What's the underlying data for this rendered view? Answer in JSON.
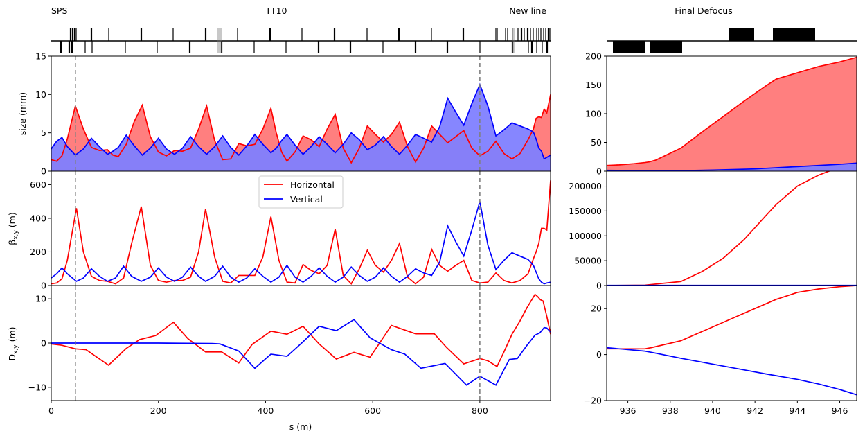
{
  "header": {
    "sps": "SPS",
    "tt10": "TT10",
    "new_line": "New line",
    "final_defocus": "Final Defocus"
  },
  "legend": {
    "horizontal": "Horizontal",
    "vertical": "Vertical"
  },
  "colors": {
    "horizontal": "#ff0000",
    "vertical": "#0000ff",
    "h_fill": "#ff7f7f",
    "v_fill": "#7f7fff",
    "v_line_style": "#808080"
  },
  "chart_data": [
    {
      "type": "area",
      "panel": "left-size",
      "xlabel": "",
      "ylabel": "size (mm)",
      "xlim": [
        0,
        932
      ],
      "ylim": [
        0,
        15
      ],
      "xticks": [],
      "yticks": [
        0,
        5,
        10,
        15
      ],
      "vlines": [
        45,
        800
      ],
      "series": [
        {
          "name": "Horizontal",
          "x": [
            0,
            10,
            20,
            30,
            45,
            60,
            75,
            90,
            105,
            115,
            125,
            140,
            155,
            170,
            185,
            200,
            215,
            230,
            245,
            260,
            275,
            290,
            305,
            320,
            335,
            350,
            365,
            380,
            395,
            410,
            420,
            430,
            440,
            455,
            470,
            485,
            500,
            515,
            530,
            545,
            560,
            575,
            590,
            605,
            620,
            635,
            650,
            665,
            680,
            695,
            710,
            725,
            740,
            755,
            770,
            785,
            800,
            815,
            830,
            845,
            860,
            875,
            890,
            900,
            905,
            910,
            915,
            920,
            925,
            932
          ],
          "values": [
            1.5,
            1.3,
            2,
            4.2,
            8.5,
            5.5,
            3.1,
            2.7,
            2.8,
            2.1,
            1.9,
            3.5,
            6.5,
            8.6,
            4.5,
            2.5,
            2,
            2.7,
            2.6,
            3,
            5.5,
            8.5,
            4,
            1.5,
            1.6,
            3.6,
            3.3,
            3.5,
            5.5,
            8.2,
            5,
            2.5,
            1.3,
            2.5,
            4.6,
            4.1,
            3.2,
            5.5,
            7.4,
            3,
            1.1,
            3,
            5.9,
            4.8,
            3.8,
            4.8,
            6.4,
            3.2,
            1.2,
            3,
            5.9,
            4.8,
            3.7,
            4.5,
            5.3,
            3,
            2,
            2.6,
            3.9,
            2.3,
            1.6,
            2.3,
            4.1,
            5.5,
            6.9,
            7.1,
            7,
            8.1,
            7.6,
            10
          ]
        },
        {
          "name": "Vertical",
          "x": [
            0,
            10,
            20,
            30,
            45,
            60,
            75,
            90,
            105,
            115,
            125,
            140,
            155,
            170,
            185,
            200,
            215,
            230,
            245,
            260,
            275,
            290,
            305,
            320,
            335,
            350,
            365,
            380,
            395,
            410,
            420,
            430,
            440,
            455,
            470,
            485,
            500,
            515,
            530,
            545,
            560,
            575,
            590,
            605,
            620,
            635,
            650,
            665,
            680,
            695,
            710,
            725,
            740,
            755,
            770,
            785,
            800,
            815,
            830,
            845,
            860,
            875,
            890,
            900,
            905,
            910,
            915,
            920,
            925,
            932
          ],
          "values": [
            2.9,
            3.9,
            4.4,
            3.2,
            2.1,
            2.9,
            4.3,
            3.2,
            2.2,
            2.6,
            3.1,
            4.7,
            3.3,
            2.1,
            3,
            4.3,
            2.9,
            2.2,
            3,
            4.5,
            3.2,
            2.2,
            3.2,
            4.6,
            3.1,
            2.1,
            3.3,
            4.8,
            3.5,
            2.4,
            3,
            4,
            4.8,
            3.4,
            2.2,
            3.2,
            4.5,
            3.5,
            2.4,
            3.5,
            5,
            4.1,
            2.8,
            3.4,
            4.5,
            3.2,
            2.2,
            3.4,
            4.8,
            4.3,
            3.8,
            5.8,
            9.5,
            7.7,
            6,
            8.8,
            11.3,
            8.5,
            4.6,
            5.4,
            6.3,
            5.9,
            5.5,
            5.1,
            4.2,
            3,
            2.6,
            1.6,
            1.8,
            2.1
          ]
        }
      ]
    },
    {
      "type": "line",
      "panel": "left-beta",
      "xlabel": "",
      "ylabel": "β_x,y (m)",
      "xlim": [
        0,
        932
      ],
      "ylim": [
        0,
        680
      ],
      "yticks": [
        0,
        200,
        400,
        600
      ],
      "vlines": [
        45,
        800
      ],
      "legend": "upper-center",
      "series": [
        {
          "name": "Horizontal",
          "x": [
            0,
            10,
            20,
            30,
            47,
            60,
            75,
            90,
            105,
            120,
            135,
            150,
            168,
            185,
            200,
            215,
            230,
            245,
            260,
            275,
            288,
            305,
            320,
            335,
            350,
            365,
            380,
            395,
            410,
            425,
            440,
            455,
            470,
            485,
            500,
            515,
            530,
            545,
            560,
            575,
            590,
            605,
            620,
            635,
            650,
            665,
            680,
            695,
            710,
            725,
            740,
            755,
            770,
            785,
            800,
            815,
            830,
            845,
            860,
            875,
            890,
            900,
            905,
            910,
            915,
            920,
            925,
            932
          ],
          "values": [
            10,
            15,
            40,
            150,
            460,
            200,
            55,
            30,
            25,
            10,
            45,
            250,
            470,
            120,
            30,
            20,
            30,
            30,
            50,
            200,
            455,
            170,
            25,
            15,
            60,
            60,
            60,
            170,
            410,
            150,
            20,
            15,
            125,
            90,
            70,
            120,
            335,
            60,
            10,
            100,
            210,
            120,
            80,
            150,
            250,
            50,
            10,
            50,
            215,
            120,
            85,
            120,
            150,
            30,
            15,
            20,
            75,
            30,
            15,
            30,
            70,
            160,
            200,
            250,
            340,
            340,
            330,
            625
          ]
        },
        {
          "name": "Vertical",
          "x": [
            0,
            10,
            20,
            30,
            47,
            60,
            75,
            90,
            105,
            120,
            135,
            150,
            168,
            185,
            200,
            215,
            230,
            245,
            260,
            275,
            288,
            305,
            320,
            335,
            350,
            365,
            380,
            395,
            410,
            425,
            440,
            455,
            470,
            485,
            500,
            515,
            530,
            545,
            560,
            575,
            590,
            605,
            620,
            635,
            650,
            665,
            680,
            695,
            710,
            725,
            740,
            755,
            770,
            785,
            800,
            815,
            830,
            845,
            860,
            875,
            890,
            900,
            905,
            910,
            915,
            920,
            925,
            932
          ],
          "values": [
            45,
            70,
            105,
            70,
            25,
            45,
            100,
            55,
            25,
            45,
            115,
            55,
            25,
            50,
            105,
            50,
            25,
            50,
            110,
            55,
            25,
            55,
            115,
            50,
            20,
            45,
            100,
            55,
            20,
            50,
            120,
            50,
            20,
            55,
            105,
            55,
            20,
            50,
            110,
            60,
            25,
            50,
            105,
            55,
            20,
            55,
            100,
            75,
            60,
            140,
            355,
            260,
            175,
            330,
            500,
            240,
            95,
            150,
            195,
            175,
            155,
            120,
            80,
            40,
            20,
            10,
            15,
            20
          ]
        }
      ]
    },
    {
      "type": "line",
      "panel": "left-dispersion",
      "xlabel": "s (m)",
      "ylabel": "D_x,y (m)",
      "xlim": [
        0,
        932
      ],
      "ylim": [
        -13,
        13
      ],
      "xticks": [
        0,
        200,
        400,
        600,
        800
      ],
      "yticks": [
        -10,
        0,
        10
      ],
      "vlines": [
        45,
        800
      ],
      "series": [
        {
          "name": "Horizontal",
          "x": [
            0,
            20,
            45,
            65,
            107,
            140,
            165,
            195,
            228,
            255,
            288,
            318,
            350,
            375,
            410,
            440,
            470,
            500,
            532,
            565,
            595,
            635,
            680,
            715,
            738,
            770,
            800,
            815,
            832,
            845,
            860,
            875,
            888,
            898,
            903,
            908,
            913,
            918,
            925,
            932
          ],
          "values": [
            -0.2,
            -0.5,
            -1.3,
            -1.5,
            -5,
            -1.2,
            0.8,
            1.7,
            4.7,
            1,
            -2,
            -2,
            -4.5,
            -0.3,
            2.7,
            2,
            3.8,
            -0.2,
            -3.6,
            -2.1,
            -3.2,
            4,
            2.1,
            2.1,
            -1,
            -4.7,
            -3.5,
            -4,
            -5.3,
            -2,
            2,
            5,
            8,
            10,
            11,
            10.5,
            9.8,
            9.5,
            6,
            2
          ]
        },
        {
          "name": "Vertical",
          "x": [
            0,
            100,
            200,
            300,
            315,
            350,
            380,
            410,
            440,
            470,
            500,
            532,
            565,
            595,
            635,
            660,
            690,
            735,
            775,
            800,
            830,
            855,
            870,
            888,
            903,
            912,
            920,
            925,
            932
          ],
          "values": [
            0,
            0,
            0,
            -0.1,
            -0.2,
            -1.8,
            -5.7,
            -2.5,
            -3,
            0.3,
            3.8,
            2.8,
            5.3,
            1.2,
            -1.5,
            -2.5,
            -5.7,
            -4.6,
            -9.5,
            -7.5,
            -9.5,
            -3.7,
            -3.5,
            -0.5,
            1.8,
            2.3,
            3.5,
            3.4,
            2.5
          ]
        }
      ]
    },
    {
      "type": "area",
      "panel": "right-size",
      "xlim": [
        935,
        946.8
      ],
      "ylim": [
        0,
        200
      ],
      "yticks": [
        0,
        50,
        100,
        150,
        200
      ],
      "series": [
        {
          "name": "Horizontal",
          "x": [
            935,
            935.6,
            936.3,
            936.8,
            937.0,
            937.3,
            938.5,
            939.5,
            940.5,
            941.5,
            942.5,
            943.0,
            943.9,
            945.0,
            946.0,
            946.8
          ],
          "values": [
            10,
            11,
            13,
            15,
            16,
            19,
            40,
            68,
            95,
            122,
            148,
            160,
            170,
            182,
            190,
            198
          ]
        },
        {
          "name": "Vertical",
          "x": [
            935,
            936.8,
            938.5,
            940.0,
            942.0,
            944.0,
            946.0,
            946.8
          ],
          "values": [
            1.5,
            1,
            1,
            2,
            4,
            8,
            12,
            14
          ]
        }
      ]
    },
    {
      "type": "line",
      "panel": "right-beta",
      "xlim": [
        935,
        946.8
      ],
      "ylim": [
        0,
        230000
      ],
      "yticks": [
        0,
        50000,
        100000,
        150000,
        200000
      ],
      "series": [
        {
          "name": "Horizontal",
          "x": [
            935,
            936.8,
            938.5,
            939.5,
            940.5,
            941.5,
            942.5,
            943.0,
            944.0,
            945.0,
            946.0,
            946.8
          ],
          "values": [
            0,
            800,
            8000,
            28000,
            55000,
            93000,
            140000,
            163000,
            200000,
            222000,
            238000,
            250000
          ]
        },
        {
          "name": "Vertical",
          "x": [
            935,
            946.8
          ],
          "values": [
            300,
            300
          ]
        }
      ]
    },
    {
      "type": "line",
      "panel": "right-dispersion",
      "xticks": [
        936,
        938,
        940,
        942,
        944,
        946
      ],
      "xlim": [
        935,
        946.8
      ],
      "ylim": [
        -20,
        30
      ],
      "yticks": [
        -20,
        0,
        20
      ],
      "series": [
        {
          "name": "Horizontal",
          "x": [
            935,
            936.8,
            937.1,
            938.5,
            939.5,
            940.5,
            941.5,
            942.5,
            943.0,
            944.0,
            945.0,
            946.0,
            946.8
          ],
          "values": [
            2.5,
            2.5,
            3,
            6,
            10,
            14,
            18,
            22,
            24,
            27,
            28.5,
            29.5,
            30
          ]
        },
        {
          "name": "Vertical",
          "x": [
            935,
            936.8,
            937.1,
            938.5,
            939.5,
            940.5,
            941.5,
            942.5,
            943.0,
            944.0,
            945.0,
            946.0,
            946.8
          ],
          "values": [
            3,
            1.5,
            1,
            -1.6,
            -3.3,
            -5,
            -6.7,
            -8.4,
            -9.2,
            -10.8,
            -12.8,
            -15.2,
            -17.5
          ]
        }
      ]
    }
  ]
}
